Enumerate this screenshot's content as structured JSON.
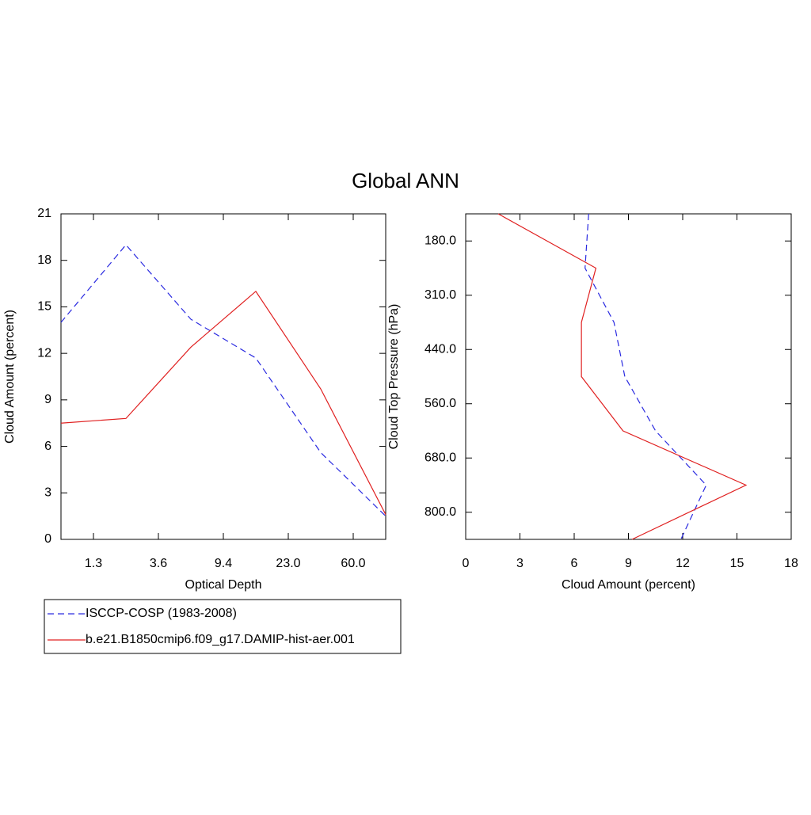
{
  "chart_data": [
    {
      "type": "line",
      "orientation": "vertical",
      "title": "Global ANN",
      "x_label": "Optical Depth",
      "y_label": "Cloud Amount (percent)",
      "x": [
        0,
        1,
        2,
        3,
        4,
        5
      ],
      "xlim": [
        0,
        5
      ],
      "xticks": [
        {
          "value": 0.5,
          "label": "1.3"
        },
        {
          "value": 1.5,
          "label": "3.6"
        },
        {
          "value": 2.5,
          "label": "9.4"
        },
        {
          "value": 3.5,
          "label": "23.0"
        },
        {
          "value": 4.5,
          "label": "60.0"
        }
      ],
      "ylim": [
        0,
        21
      ],
      "yticks": [
        0,
        3,
        6,
        9,
        12,
        15,
        18,
        21
      ],
      "series": [
        {
          "name": "ISCCP-COSP (1983-2008)",
          "color": "#2a2ae0",
          "line_style": "dashed",
          "values": [
            14.0,
            19.0,
            14.2,
            11.7,
            5.6,
            1.5
          ]
        },
        {
          "name": "b.e21.B1850cmip6.f09_g17.DAMIP-hist-aer.001",
          "color": "#e02020",
          "line_style": "solid",
          "values": [
            7.5,
            7.8,
            12.4,
            16.0,
            9.7,
            1.6
          ]
        }
      ]
    },
    {
      "type": "line",
      "orientation": "horizontal",
      "x_label": "Cloud Amount (percent)",
      "y_label": "Cloud Top Pressure (hPa)",
      "y": [
        0,
        1,
        2,
        3,
        4,
        5,
        6
      ],
      "ylim": [
        6,
        0
      ],
      "yticks": [
        {
          "value": 0.5,
          "label": "180.0"
        },
        {
          "value": 1.5,
          "label": "310.0"
        },
        {
          "value": 2.5,
          "label": "440.0"
        },
        {
          "value": 3.5,
          "label": "560.0"
        },
        {
          "value": 4.5,
          "label": "680.0"
        },
        {
          "value": 5.5,
          "label": "800.0"
        }
      ],
      "xlim": [
        0,
        18
      ],
      "xticks": [
        0,
        3,
        6,
        9,
        12,
        15,
        18
      ],
      "series": [
        {
          "name": "ISCCP-COSP (1983-2008)",
          "color": "#2a2ae0",
          "line_style": "dashed",
          "values": [
            6.8,
            6.6,
            8.2,
            8.8,
            10.5,
            13.3,
            11.9
          ]
        },
        {
          "name": "b.e21.B1850cmip6.f09_g17.DAMIP-hist-aer.001",
          "color": "#e02020",
          "line_style": "solid",
          "values": [
            1.8,
            7.2,
            6.4,
            6.4,
            8.7,
            15.5,
            9.2
          ]
        }
      ]
    }
  ]
}
